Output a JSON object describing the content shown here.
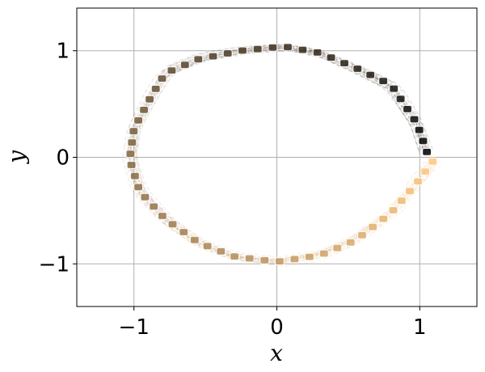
{
  "chart_data": {
    "type": "scatter",
    "title": "",
    "xlabel": "x",
    "ylabel": "y",
    "xlim": [
      -1.4,
      1.4
    ],
    "ylim": [
      -1.4,
      1.4
    ],
    "x_ticks": [
      {
        "value": -1,
        "label": "−1"
      },
      {
        "value": 0,
        "label": "0"
      },
      {
        "value": 1,
        "label": "1"
      }
    ],
    "y_ticks": [
      {
        "value": -1,
        "label": "−1"
      },
      {
        "value": 0,
        "label": "0"
      },
      {
        "value": 1,
        "label": "1"
      }
    ],
    "grid": true,
    "colormap": "copper",
    "color_start": "#ffc77f",
    "color_end": "#000000",
    "trajectory": [
      [
        1.09,
        -0.04
      ],
      [
        0.98,
        -0.24
      ],
      [
        0.8,
        -0.52
      ],
      [
        0.55,
        -0.78
      ],
      [
        0.3,
        -0.92
      ],
      [
        0.0,
        -0.98
      ],
      [
        -0.3,
        -0.93
      ],
      [
        -0.55,
        -0.8
      ],
      [
        -0.78,
        -0.58
      ],
      [
        -0.96,
        -0.32
      ],
      [
        -1.03,
        -0.02
      ],
      [
        -1.0,
        0.27
      ],
      [
        -0.88,
        0.57
      ],
      [
        -0.78,
        0.79
      ],
      [
        -0.55,
        0.92
      ],
      [
        -0.25,
        1.0
      ],
      [
        0.05,
        1.04
      ],
      [
        0.3,
        0.98
      ],
      [
        0.55,
        0.84
      ],
      [
        0.8,
        0.68
      ],
      [
        0.98,
        0.32
      ],
      [
        1.05,
        0.05
      ]
    ],
    "n_samples": 22,
    "scatter_points": 60
  }
}
